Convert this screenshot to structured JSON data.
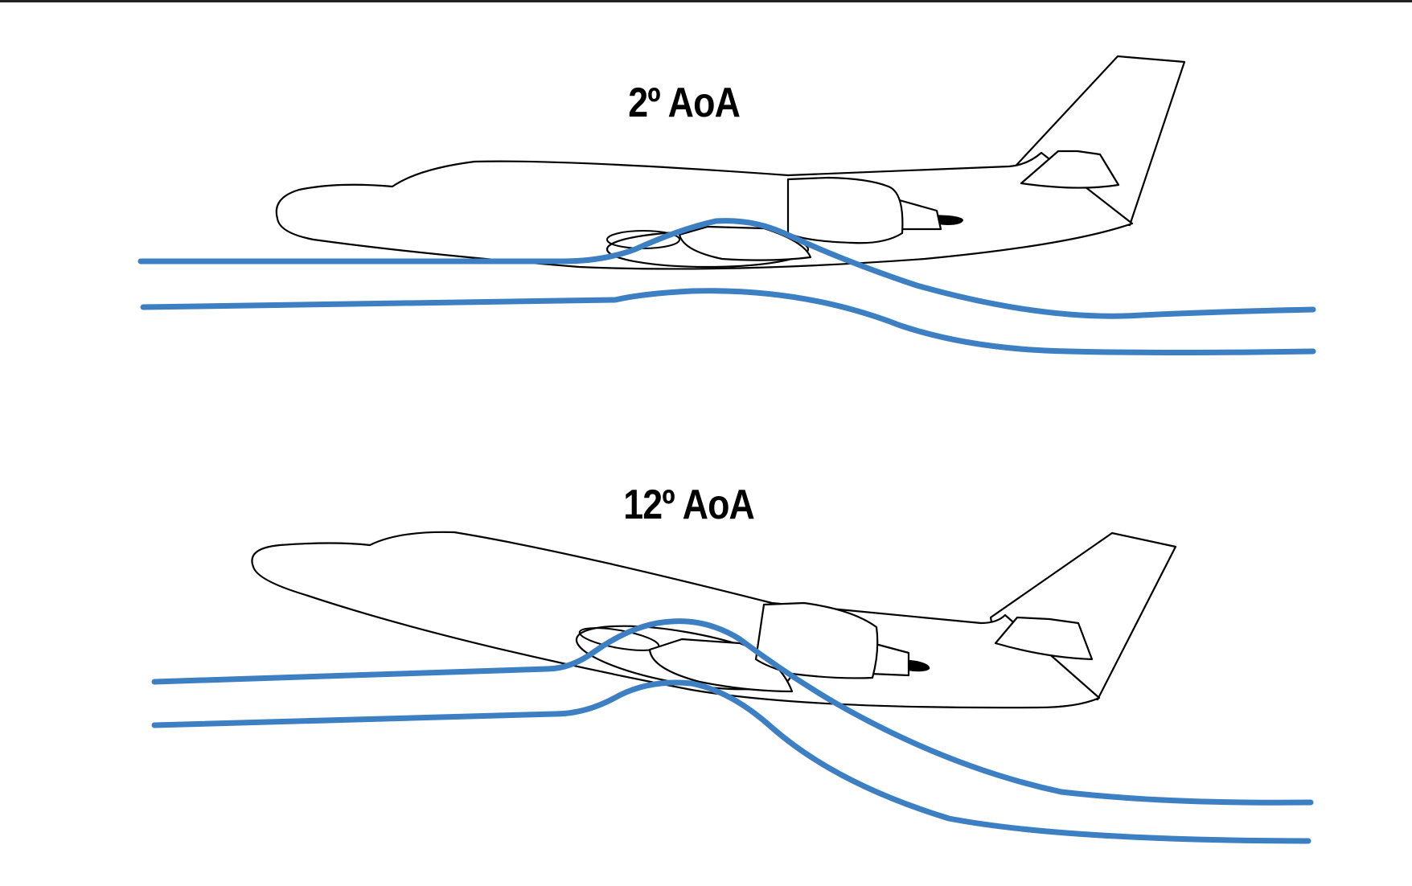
{
  "diagrams": [
    {
      "label": "2º AoA"
    },
    {
      "label": "12º AoA"
    }
  ],
  "colors": {
    "streamline": "#3d7fc3",
    "outline": "#000000",
    "background": "#ffffff"
  }
}
